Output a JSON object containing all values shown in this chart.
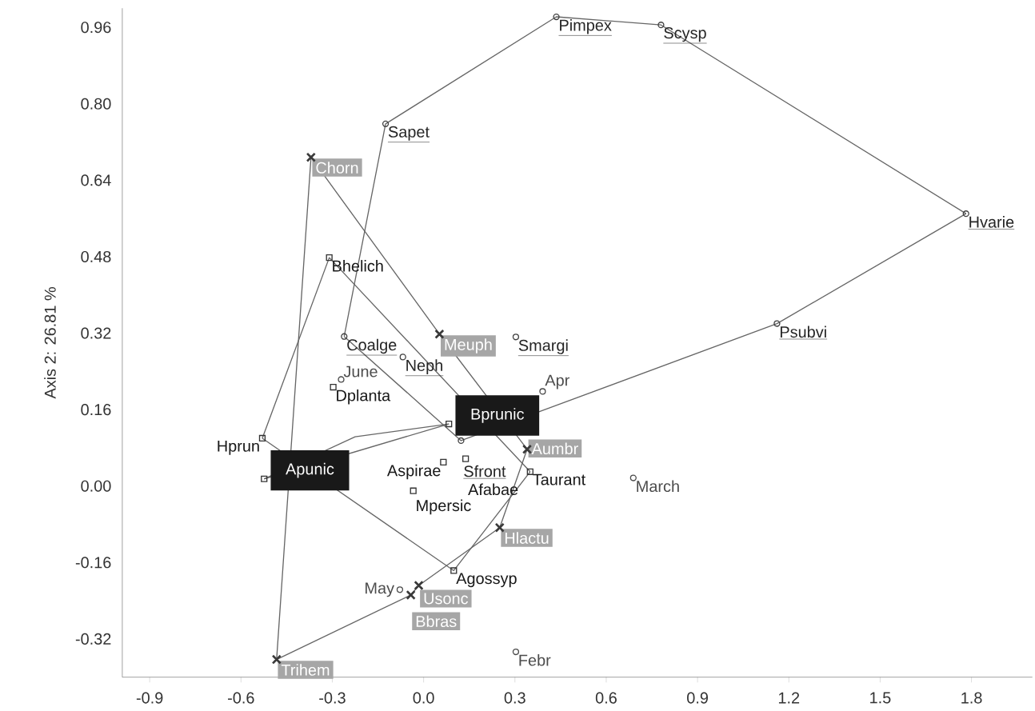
{
  "chart_data": {
    "type": "scatter",
    "ylabel": "Axis 2: 26.81 %",
    "xlim": [
      -0.99,
      2.0
    ],
    "ylim": [
      -0.4,
      1.0
    ],
    "xticks": [
      {
        "value": -0.9,
        "label": "-0.9"
      },
      {
        "value": -0.6,
        "label": "-0.6"
      },
      {
        "value": -0.3,
        "label": "-0.3"
      },
      {
        "value": 0,
        "label": "0.0"
      },
      {
        "value": 0.3,
        "label": "0.3"
      },
      {
        "value": 0.6,
        "label": "0.6"
      },
      {
        "value": 0.9,
        "label": "0.9"
      },
      {
        "value": 1.2,
        "label": "1.2"
      },
      {
        "value": 1.5,
        "label": "1.5"
      },
      {
        "value": 1.8,
        "label": "1.8"
      }
    ],
    "yticks": [
      {
        "value": -0.32,
        "label": "-0.32"
      },
      {
        "value": -0.16,
        "label": "-0.16"
      },
      {
        "value": 0,
        "label": "0.00"
      },
      {
        "value": 0.16,
        "label": "0.16"
      },
      {
        "value": 0.32,
        "label": "0.32"
      },
      {
        "value": 0.48,
        "label": "0.48"
      },
      {
        "value": 0.64,
        "label": "0.64"
      },
      {
        "value": 0.8,
        "label": "0.80"
      },
      {
        "value": 0.96,
        "label": "0.96"
      }
    ],
    "series": [
      {
        "type": "line",
        "color": "#666666",
        "x": [
          -0.261,
          -0.125,
          0.436,
          0.78,
          1.782
        ],
        "values": [
          0.313,
          0.758,
          0.982,
          0.965,
          0.57
        ]
      },
      {
        "type": "line",
        "color": "#666666",
        "x": [
          -0.261,
          0.123,
          1.161,
          1.782
        ],
        "values": [
          0.313,
          0.095,
          0.34,
          0.57
        ]
      },
      {
        "type": "line",
        "color": "#666666",
        "x": [
          -0.53,
          -0.31,
          0.35
        ],
        "values": [
          0.1,
          0.478,
          0.03
        ]
      },
      {
        "type": "line",
        "color": "#666666",
        "x": [
          -0.53,
          0.099,
          0.35
        ],
        "values": [
          0.1,
          -0.177,
          0.03
        ]
      },
      {
        "type": "line",
        "color": "#666666",
        "x": [
          -0.524,
          -0.225,
          0.083
        ],
        "values": [
          0.015,
          0.103,
          0.13
        ]
      },
      {
        "type": "line",
        "color": "#666666",
        "x": [
          -0.524,
          0.083
        ],
        "values": [
          0.015,
          0.13
        ]
      },
      {
        "type": "line",
        "color": "#666666",
        "x": [
          -0.483,
          -0.37,
          0.052,
          0.34
        ],
        "values": [
          -0.363,
          0.688,
          0.318,
          0.077
        ]
      },
      {
        "type": "line",
        "color": "#666666",
        "x": [
          -0.483,
          -0.042,
          -0.016,
          0.25,
          0.34
        ],
        "values": [
          -0.363,
          -0.228,
          -0.208,
          -0.087,
          0.077
        ]
      },
      {
        "marker": "circle",
        "color": "#404040",
        "x": [
          0.436,
          0.78,
          -0.125,
          1.782,
          1.161,
          0.303,
          -0.261,
          -0.068,
          0.123
        ],
        "values": [
          0.982,
          0.965,
          0.758,
          0.57,
          0.34,
          0.312,
          0.313,
          0.27,
          0.095
        ],
        "value_labels": [
          "Pimpex",
          "Scysp",
          "Sapet",
          "Hvarie",
          "Psubvi",
          "Smargi",
          "Coalge",
          "Neph",
          "Sfront"
        ]
      },
      {
        "marker": "square",
        "color": "#333333",
        "x": [
          -0.31,
          -0.297,
          -0.53,
          0.138,
          0.065,
          -0.034,
          0.099,
          0.35
        ],
        "values": [
          0.478,
          0.207,
          0.1,
          0.057,
          0.05,
          -0.01,
          -0.177,
          0.03
        ],
        "value_labels": [
          "Bhelich",
          "Dplanta",
          "Hprun",
          "Afabae",
          "Aspirae",
          "Mpersic",
          "Agossyp",
          "Taurant"
        ]
      },
      {
        "marker": "square",
        "color": "#333333",
        "x": [
          -0.524,
          0.083
        ],
        "values": [
          0.015,
          0.13
        ],
        "value_labels": [
          "Apunic",
          "Bprunic"
        ]
      },
      {
        "marker": "cross",
        "color": "#3a3a3a",
        "x": [
          -0.37,
          0.052,
          0.34,
          0.25,
          -0.016,
          -0.042,
          -0.483
        ],
        "values": [
          0.688,
          0.318,
          0.077,
          -0.087,
          -0.208,
          -0.228,
          -0.363
        ],
        "value_labels": [
          "Chorn",
          "Meuph",
          "Aumbr",
          "Hlactu",
          "Usonc",
          "Bbras",
          "Trihem"
        ]
      },
      {
        "marker": "circle",
        "color": "#4a4a4a",
        "x": [
          -0.271,
          0.391,
          0.689,
          -0.078,
          0.303
        ],
        "values": [
          0.223,
          0.198,
          0.017,
          -0.217,
          -0.347
        ],
        "value_labels": [
          "June",
          "Apr",
          "March",
          "May",
          "Febr"
        ]
      }
    ]
  }
}
